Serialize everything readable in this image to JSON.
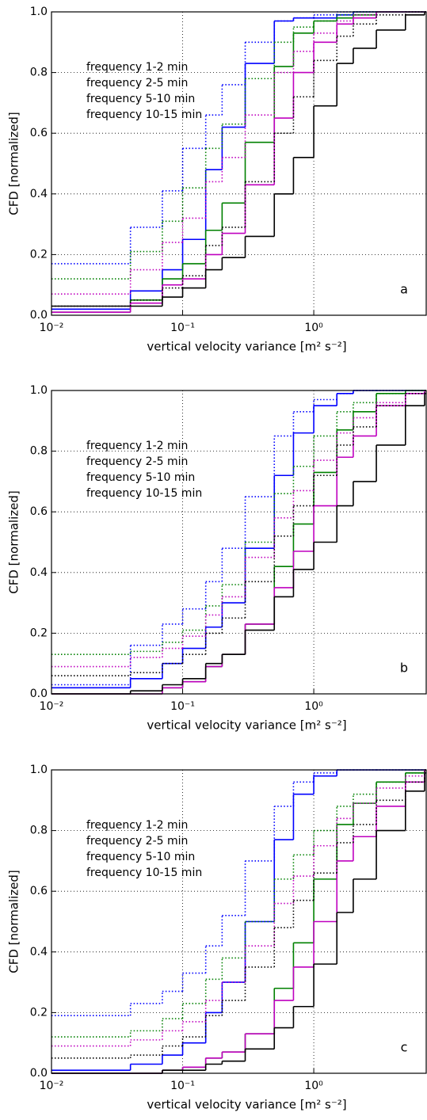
{
  "chart_data": [
    {
      "type": "line",
      "annotation": "a",
      "xlabel": "vertical velocity variance [m² s⁻²]",
      "ylabel": "CFD [normalized]",
      "xscale": "log",
      "grid": true,
      "xlim": [
        0.01,
        7.2
      ],
      "ylim": [
        0,
        1
      ],
      "xticks": [
        {
          "value": 0.01,
          "label": "10⁻²"
        },
        {
          "value": 0.1,
          "label": "10⁻¹"
        },
        {
          "value": 1,
          "label": "10⁰"
        }
      ],
      "yticks": [
        {
          "value": 0,
          "label": "0.0"
        },
        0.2,
        0.4,
        0.6,
        0.8,
        {
          "value": 1,
          "label": "1.0"
        }
      ],
      "x": [
        0.01,
        0.04,
        0.07,
        0.1,
        0.15,
        0.2,
        0.3,
        0.5,
        0.7,
        1,
        1.5,
        2,
        3,
        5,
        7
      ],
      "series": [
        {
          "name": "frequency 1-2 min",
          "color": "#0000ff",
          "linestyle": "solid",
          "values": [
            0.02,
            0.08,
            0.15,
            0.25,
            0.48,
            0.62,
            0.83,
            0.97,
            0.98,
            0.98,
            0.99,
            1,
            1,
            1,
            1
          ]
        },
        {
          "name": "frequency 2-5 min",
          "color": "#008000",
          "linestyle": "solid",
          "values": [
            0.01,
            0.05,
            0.12,
            0.17,
            0.28,
            0.37,
            0.57,
            0.82,
            0.93,
            0.97,
            0.98,
            0.99,
            1,
            1,
            1
          ]
        },
        {
          "name": "frequency 5-10 min",
          "color": "#bf00bf",
          "linestyle": "solid",
          "values": [
            0.01,
            0.04,
            0.1,
            0.12,
            0.2,
            0.27,
            0.43,
            0.65,
            0.8,
            0.9,
            0.96,
            0.98,
            1,
            1,
            1
          ]
        },
        {
          "name": "frequency 10-15 min",
          "color": "#000000",
          "linestyle": "solid",
          "values": [
            0.03,
            0.03,
            0.06,
            0.09,
            0.15,
            0.19,
            0.26,
            0.4,
            0.52,
            0.69,
            0.83,
            0.88,
            0.94,
            0.99,
            1
          ]
        },
        {
          "color": "#0000ff",
          "linestyle": "dotted",
          "values": [
            0.17,
            0.29,
            0.41,
            0.55,
            0.66,
            0.76,
            0.9,
            0.97,
            0.98,
            0.99,
            1,
            1,
            1,
            1,
            1
          ]
        },
        {
          "color": "#008000",
          "linestyle": "dotted",
          "values": [
            0.12,
            0.21,
            0.31,
            0.42,
            0.55,
            0.63,
            0.78,
            0.9,
            0.95,
            0.97,
            0.99,
            1,
            1,
            1,
            1
          ]
        },
        {
          "color": "#bf00bf",
          "linestyle": "dotted",
          "values": [
            0.07,
            0.15,
            0.24,
            0.32,
            0.44,
            0.52,
            0.66,
            0.8,
            0.87,
            0.93,
            0.97,
            0.99,
            1,
            1,
            1
          ]
        },
        {
          "color": "#000000",
          "linestyle": "dotted",
          "values": [
            0.03,
            0.05,
            0.09,
            0.13,
            0.23,
            0.29,
            0.44,
            0.6,
            0.72,
            0.84,
            0.92,
            0.96,
            0.99,
            1,
            1
          ]
        }
      ]
    },
    {
      "type": "line",
      "annotation": "b",
      "xlabel": "vertical velocity variance [m² s⁻²]",
      "ylabel": "CFD [normalized]",
      "xscale": "log",
      "grid": true,
      "xlim": [
        0.01,
        7.2
      ],
      "ylim": [
        0,
        1
      ],
      "xticks": [
        {
          "value": 0.01,
          "label": "10⁻²"
        },
        {
          "value": 0.1,
          "label": "10⁻¹"
        },
        {
          "value": 1,
          "label": "10⁰"
        }
      ],
      "yticks": [
        {
          "value": 0,
          "label": "0.0"
        },
        0.2,
        0.4,
        0.6,
        0.8,
        {
          "value": 1,
          "label": "1.0"
        }
      ],
      "x": [
        0.01,
        0.04,
        0.07,
        0.1,
        0.15,
        0.2,
        0.3,
        0.5,
        0.7,
        1,
        1.5,
        2,
        3,
        5,
        7
      ],
      "series": [
        {
          "name": "frequency 1-2 min",
          "color": "#0000ff",
          "linestyle": "solid",
          "values": [
            0.02,
            0.05,
            0.1,
            0.15,
            0.22,
            0.3,
            0.48,
            0.72,
            0.86,
            0.95,
            0.99,
            1,
            1,
            1,
            1
          ]
        },
        {
          "name": "frequency 2-5 min",
          "color": "#008000",
          "linestyle": "solid",
          "values": [
            0,
            0,
            0.02,
            0.04,
            0.09,
            0.13,
            0.23,
            0.42,
            0.56,
            0.73,
            0.87,
            0.93,
            0.99,
            1,
            1
          ]
        },
        {
          "name": "frequency 5-10 min",
          "color": "#bf00bf",
          "linestyle": "solid",
          "values": [
            0,
            0,
            0.02,
            0.04,
            0.09,
            0.13,
            0.23,
            0.35,
            0.47,
            0.62,
            0.78,
            0.85,
            0.95,
            0.99,
            1
          ]
        },
        {
          "name": "frequency 10-15 min",
          "color": "#000000",
          "linestyle": "solid",
          "values": [
            0,
            0.01,
            0.03,
            0.05,
            0.1,
            0.13,
            0.21,
            0.32,
            0.41,
            0.5,
            0.62,
            0.7,
            0.82,
            0.95,
            0.99
          ]
        },
        {
          "color": "#0000ff",
          "linestyle": "dotted",
          "values": [
            0.03,
            0.16,
            0.23,
            0.28,
            0.37,
            0.48,
            0.65,
            0.85,
            0.93,
            0.97,
            0.99,
            1,
            1,
            1,
            1
          ]
        },
        {
          "color": "#008000",
          "linestyle": "dotted",
          "values": [
            0.13,
            0.14,
            0.17,
            0.21,
            0.29,
            0.36,
            0.5,
            0.66,
            0.75,
            0.85,
            0.93,
            0.96,
            0.99,
            1,
            1
          ]
        },
        {
          "color": "#bf00bf",
          "linestyle": "dotted",
          "values": [
            0.09,
            0.12,
            0.15,
            0.19,
            0.26,
            0.32,
            0.45,
            0.58,
            0.67,
            0.77,
            0.86,
            0.91,
            0.96,
            0.99,
            1
          ]
        },
        {
          "color": "#000000",
          "linestyle": "dotted",
          "values": [
            0.06,
            0.07,
            0.1,
            0.13,
            0.2,
            0.25,
            0.37,
            0.52,
            0.62,
            0.72,
            0.82,
            0.88,
            0.95,
            0.99,
            1
          ]
        }
      ]
    },
    {
      "type": "line",
      "annotation": "c",
      "xlabel": "vertical velocity variance [m² s⁻²]",
      "ylabel": "CFD [normalized]",
      "xscale": "log",
      "grid": true,
      "xlim": [
        0.01,
        7.2
      ],
      "ylim": [
        0,
        1
      ],
      "xticks": [
        {
          "value": 0.01,
          "label": "10⁻²"
        },
        {
          "value": 0.1,
          "label": "10⁻¹"
        },
        {
          "value": 1,
          "label": "10⁰"
        }
      ],
      "yticks": [
        {
          "value": 0,
          "label": "0.0"
        },
        0.2,
        0.4,
        0.6,
        0.8,
        {
          "value": 1,
          "label": "1.0"
        }
      ],
      "x": [
        0.01,
        0.04,
        0.07,
        0.1,
        0.15,
        0.2,
        0.3,
        0.5,
        0.7,
        1,
        1.5,
        2,
        3,
        5,
        7
      ],
      "series": [
        {
          "name": "frequency 1-2 min",
          "color": "#0000ff",
          "linestyle": "solid",
          "values": [
            0.01,
            0.03,
            0.06,
            0.1,
            0.2,
            0.3,
            0.5,
            0.77,
            0.92,
            0.98,
            1,
            1,
            1,
            1,
            1
          ]
        },
        {
          "name": "frequency 2-5 min",
          "color": "#008000",
          "linestyle": "solid",
          "values": [
            0,
            0,
            0.01,
            0.02,
            0.05,
            0.07,
            0.13,
            0.28,
            0.43,
            0.64,
            0.82,
            0.89,
            0.96,
            0.99,
            1
          ]
        },
        {
          "name": "frequency 5-10 min",
          "color": "#bf00bf",
          "linestyle": "solid",
          "values": [
            0,
            0,
            0.01,
            0.02,
            0.05,
            0.07,
            0.13,
            0.24,
            0.35,
            0.5,
            0.7,
            0.78,
            0.88,
            0.96,
            1
          ]
        },
        {
          "name": "frequency 10-15 min",
          "color": "#000000",
          "linestyle": "solid",
          "values": [
            0,
            0,
            0.01,
            0.01,
            0.03,
            0.04,
            0.08,
            0.15,
            0.22,
            0.36,
            0.53,
            0.64,
            0.8,
            0.93,
            0.99
          ]
        },
        {
          "color": "#0000ff",
          "linestyle": "dotted",
          "values": [
            0.19,
            0.23,
            0.27,
            0.33,
            0.42,
            0.52,
            0.7,
            0.88,
            0.96,
            0.99,
            1,
            1,
            1,
            1,
            1
          ]
        },
        {
          "color": "#008000",
          "linestyle": "dotted",
          "values": [
            0.12,
            0.14,
            0.18,
            0.23,
            0.31,
            0.38,
            0.5,
            0.64,
            0.72,
            0.8,
            0.88,
            0.92,
            0.96,
            0.99,
            1
          ]
        },
        {
          "color": "#bf00bf",
          "linestyle": "dotted",
          "values": [
            0.09,
            0.11,
            0.14,
            0.17,
            0.24,
            0.3,
            0.42,
            0.56,
            0.65,
            0.75,
            0.84,
            0.89,
            0.94,
            0.98,
            1
          ]
        },
        {
          "color": "#000000",
          "linestyle": "dotted",
          "values": [
            0.05,
            0.06,
            0.09,
            0.12,
            0.19,
            0.24,
            0.35,
            0.48,
            0.57,
            0.66,
            0.76,
            0.82,
            0.9,
            0.96,
            1
          ]
        }
      ]
    }
  ]
}
